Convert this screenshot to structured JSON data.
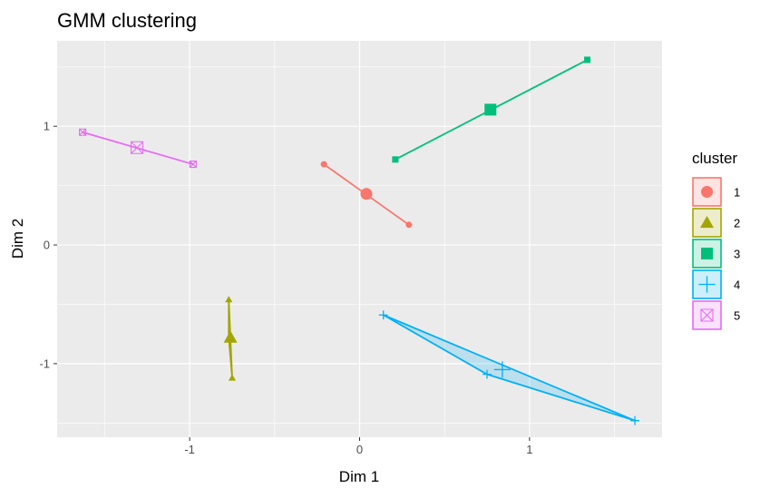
{
  "chart_data": {
    "type": "scatter",
    "title": "GMM clustering",
    "xlabel": "Dim 1",
    "ylabel": "Dim 2",
    "xlim": [
      -1.78,
      1.78
    ],
    "ylim": [
      -1.62,
      1.72
    ],
    "x_ticks": [
      -1,
      0,
      1
    ],
    "y_ticks": [
      -1,
      0,
      1
    ],
    "x_tick_labels": [
      "-1",
      "0",
      "1"
    ],
    "y_tick_labels": [
      "-1",
      "0",
      "1"
    ],
    "grid": true,
    "legend": {
      "title": "cluster",
      "position": "right"
    },
    "series": [
      {
        "name": "1",
        "color": "#F8766D",
        "shape": "circle",
        "points": [
          [
            -0.21,
            0.68
          ],
          [
            0.29,
            0.17
          ]
        ],
        "centroid": [
          0.04,
          0.43
        ]
      },
      {
        "name": "2",
        "color": "#A3A500",
        "shape": "triangle",
        "points": [
          [
            -0.77,
            -0.46
          ],
          [
            -0.75,
            -1.12
          ],
          [
            -0.77,
            -0.78
          ]
        ],
        "centroid": [
          -0.76,
          -0.78
        ]
      },
      {
        "name": "3",
        "color": "#00BF7D",
        "shape": "square",
        "points": [
          [
            0.21,
            0.72
          ],
          [
            1.34,
            1.56
          ]
        ],
        "centroid": [
          0.77,
          1.14
        ]
      },
      {
        "name": "4",
        "color": "#00B0F6",
        "shape": "plus",
        "points": [
          [
            0.14,
            -0.59
          ],
          [
            0.75,
            -1.09
          ],
          [
            1.62,
            -1.48
          ]
        ],
        "centroid": [
          0.84,
          -1.05
        ]
      },
      {
        "name": "5",
        "color": "#E76BF3",
        "shape": "boxcross",
        "points": [
          [
            -1.63,
            0.95
          ],
          [
            -0.98,
            0.68
          ]
        ],
        "centroid": [
          -1.31,
          0.82
        ]
      }
    ]
  }
}
